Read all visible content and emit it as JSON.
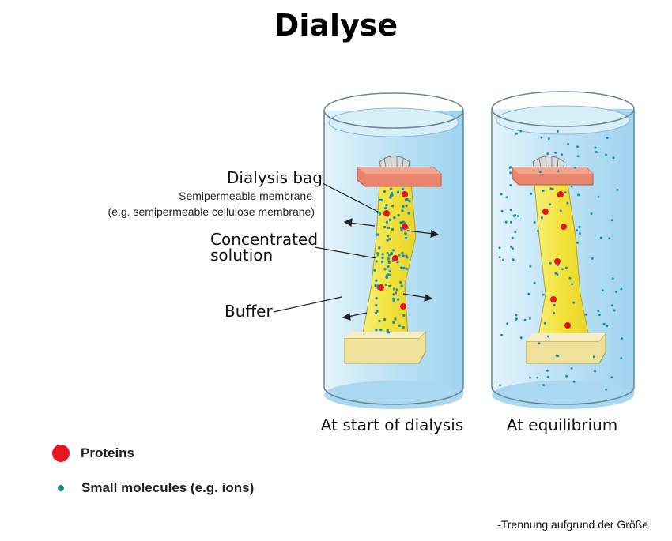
{
  "title": "Dialyse",
  "labels": {
    "dialysis_bag": "Dialysis bag",
    "membrane_line1": "Semipermeable membrane",
    "membrane_line2": "(e.g. semipermeable cellulose membrane)",
    "concentrated_line1": "Concentrated",
    "concentrated_line2": "solution",
    "buffer": "Buffer"
  },
  "captions": {
    "start": "At start of dialysis",
    "equilibrium": "At equilibrium"
  },
  "legend": {
    "proteins": "Proteins",
    "small_molecules": "Small molecules (e.g. ions)"
  },
  "footnote": "-Trennung aufgrund der Größe",
  "colors": {
    "protein": "#e8141e",
    "small_molecule": "#1a8fb0",
    "buffer": "#bfe4f6",
    "bag": "#f2e23a",
    "clamp": "#e8836c",
    "base": "#efe09a"
  }
}
